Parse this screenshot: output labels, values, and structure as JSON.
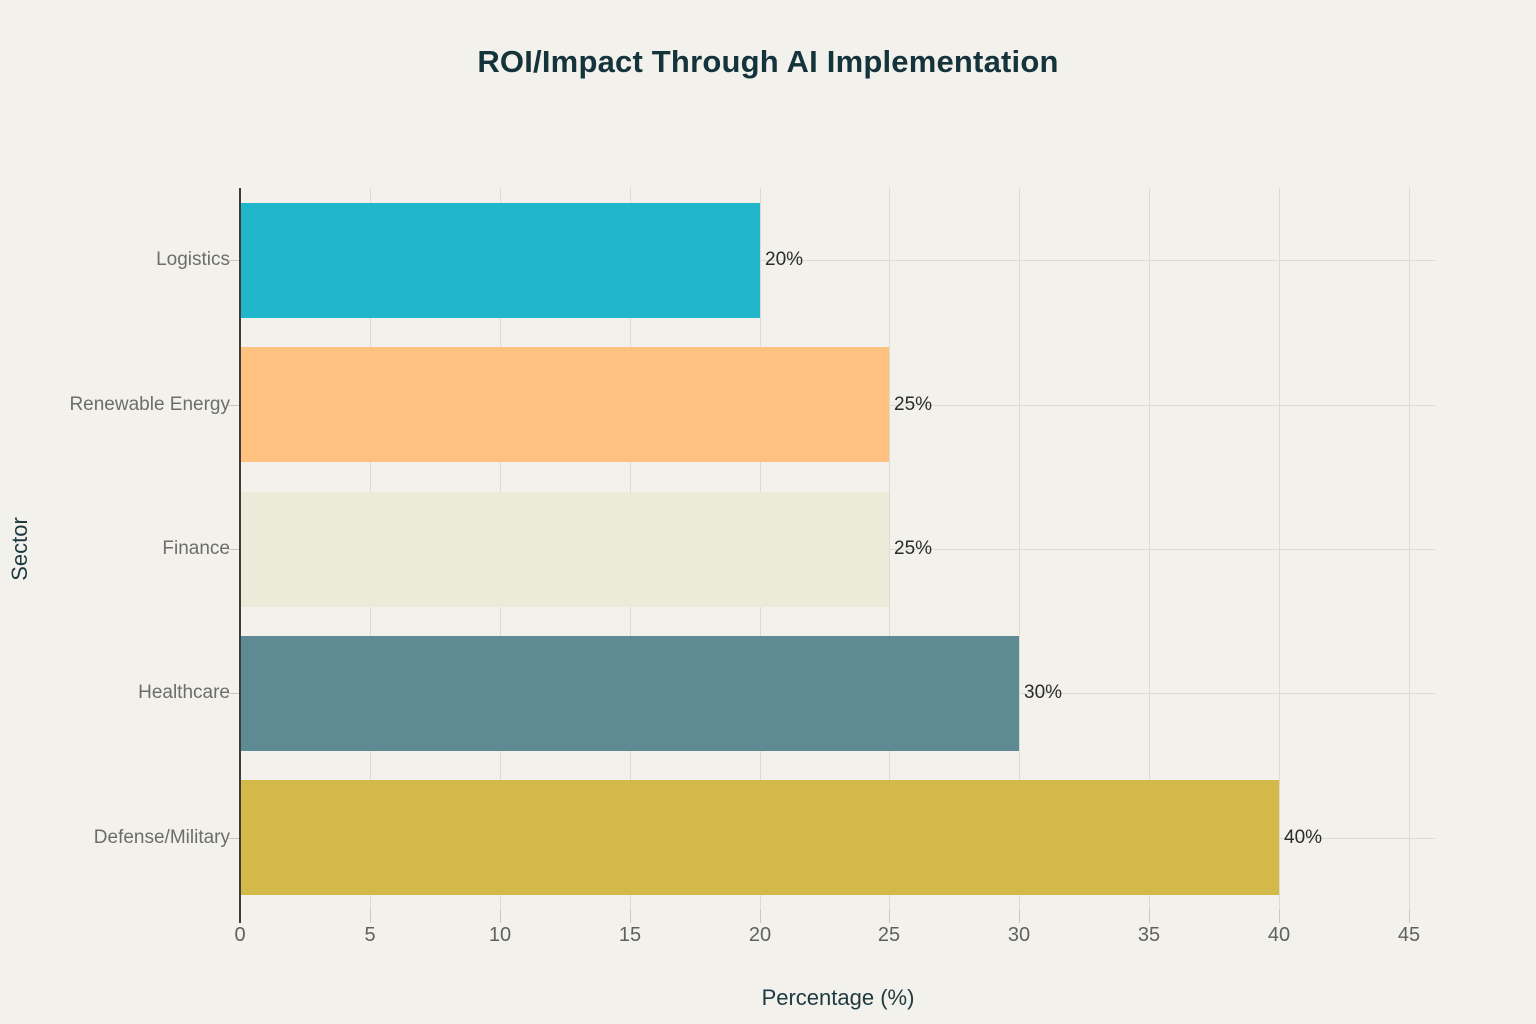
{
  "page": {
    "background": "#f2f1ec"
  },
  "chart_data": {
    "type": "bar",
    "orientation": "horizontal",
    "title": "ROI/Impact Through AI Implementation",
    "xlabel": "Percentage (%)",
    "ylabel": "Sector",
    "categories": [
      "Logistics",
      "Renewable Energy",
      "Finance",
      "Healthcare",
      "Defense/Military"
    ],
    "values": [
      20,
      25,
      25,
      30,
      40
    ],
    "value_labels": [
      "20%",
      "25%",
      "25%",
      "30%",
      "40%"
    ],
    "bar_colors": [
      "#21b7cb",
      "#fec180",
      "#ebebd9",
      "#5d8a93",
      "#d2b94a"
    ],
    "xlim": [
      0,
      46
    ],
    "xticks": [
      0,
      5,
      10,
      15,
      20,
      25,
      30,
      35,
      40,
      45
    ],
    "grid": true,
    "legend_position": "none"
  },
  "style_colors": {
    "title_text": "#15333b",
    "axis_title_text": "#1e3a40",
    "tick_label_text": "#606060",
    "category_label_text": "#6d6d6d",
    "value_label_text": "#2b2b2b",
    "gridline": "#dddcd2",
    "axis_line": "#3c3c3c",
    "tick_mark": "#c9c8c0"
  }
}
